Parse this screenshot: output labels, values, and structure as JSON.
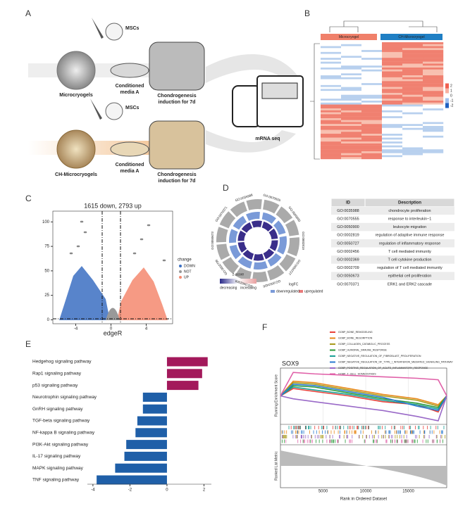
{
  "panel_letters": [
    "A",
    "B",
    "C",
    "D",
    "E",
    "F"
  ],
  "panel_a": {
    "msc_label_top": "MSCs",
    "msc_label_bottom": "MSCs",
    "scaffold_top": "Microcryogels",
    "scaffold_bottom": "CH-Microcryogels",
    "media_top": [
      "Conditioned",
      "media A"
    ],
    "media_bottom": [
      "Conditioned",
      "media A"
    ],
    "induction_top": [
      "Chondrogenesis",
      "induction for 7d"
    ],
    "induction_bottom": [
      "Chondrogenesis",
      "induction for 7d"
    ],
    "sequencing": "mRNA seq"
  },
  "panel_b": {
    "groups": [
      "Microcryogel",
      "CH-Microcryogel"
    ],
    "scale": [
      {
        "value": 2,
        "label": "2"
      },
      {
        "value": 1,
        "label": "1"
      },
      {
        "value": 0,
        "label": "0"
      },
      {
        "value": -1,
        "label": "-1"
      },
      {
        "value": -2,
        "label": "-2"
      }
    ]
  },
  "panel_d": {
    "axis_labels": {
      "zscore": "z-score",
      "decreasing": "decreasing",
      "increasing": "increasing",
      "logfc": "logFC",
      "down": "downregulated",
      "up": "upregulated"
    },
    "table": {
      "header": [
        "ID",
        "Description"
      ],
      "rows": [
        [
          "GO:0035988",
          "chondrocyte proliferation"
        ],
        [
          "GO:0070555",
          "response to interleukin−1"
        ],
        [
          "GO:0050900",
          "leukocyte migration"
        ],
        [
          "GO:0002819",
          "regulation of adaptive immune response"
        ],
        [
          "GO:0050727",
          "regulation of inflammatory response"
        ],
        [
          "GO:0002456",
          "T cell mediated immunity"
        ],
        [
          "GO:0002369",
          "T cell cytokine production"
        ],
        [
          "GO:0002709",
          "regulation of T cell mediated immunity"
        ],
        [
          "GO:0050673",
          "epithelial cell proliferation"
        ],
        [
          "GO:0070371",
          "ERK1 and ERK2 cascade"
        ]
      ],
      "highlight_color": "#e0312a"
    }
  },
  "chart_data": [
    {
      "type": "volcano",
      "title": "1615 down, 2793 up",
      "x_label": "edgeR",
      "xlim": [
        -6.6,
        7
      ],
      "ylim": [
        -4,
        111
      ],
      "xticks": [
        -4,
        0,
        4
      ],
      "yticks": [
        0,
        25,
        50,
        75,
        100
      ],
      "legend_title": "change",
      "legend": [
        {
          "name": "DOWN",
          "color": "#3b6fc2"
        },
        {
          "name": "NOT",
          "color": "#999999"
        },
        {
          "name": "UP",
          "color": "#f4886e"
        }
      ]
    },
    {
      "type": "hbar",
      "categories": [
        "Hedgehog signaling pathway",
        "Rap1 signaling pathway",
        "p53 signaling pathway",
        "Neurotrophin signaling pathway",
        "GnRH signaling pathway",
        "TGF-beta signaling pathway",
        "NF-kappa B signaling pathway",
        "PI3K-Akt signaling pathway",
        "IL-17 signaling pathway",
        "MAPK signaling pathway",
        "TNF signaling pathway"
      ],
      "values": [
        2.2,
        1.9,
        1.7,
        -1.3,
        -1.3,
        -1.6,
        -1.7,
        -2.2,
        -2.3,
        -2.8,
        -3.8
      ],
      "positive_color": "#a3195b",
      "negative_color": "#1f5fa8",
      "positive_label_color": "#e0312a",
      "negative_label_color": "#2a3f9a",
      "xlim": [
        -4.3,
        2.4
      ],
      "xticks": [
        -4,
        -2,
        0,
        2
      ]
    },
    {
      "type": "line",
      "title": "SOX9",
      "y_label": "Running Enrichment Score",
      "y2_label": "Ranked List Metric",
      "x_label": "Rank in Ordered Dataset",
      "x": [
        0,
        1500,
        4000,
        8000,
        12000,
        16000,
        18500,
        19500
      ],
      "xlim": [
        0,
        19500
      ],
      "xticks": [
        5000,
        10000,
        15000
      ],
      "ylim": [
        -0.9,
        0.9
      ],
      "series": [
        {
          "name": "GOBP_BONE_REMODELING",
          "color": "#e8413a",
          "values": [
            0,
            0.25,
            0.15,
            0,
            -0.2,
            -0.3,
            -0.55,
            0
          ]
        },
        {
          "name": "GOBP_BONE_RESORPTION",
          "color": "#e8891a",
          "values": [
            0,
            0.5,
            0.45,
            0.25,
            0.05,
            -0.1,
            -0.3,
            0
          ]
        },
        {
          "name": "GOBP_COLLAGEN_CATABOLIC_PROCESS",
          "color": "#a89a1c",
          "values": [
            0,
            0.45,
            0.4,
            0.2,
            0,
            -0.15,
            -0.35,
            0
          ]
        },
        {
          "name": "GOBP_HUMORAL_IMMUNE_RESPONSE",
          "color": "#2a9a3a",
          "values": [
            0,
            0.35,
            0.3,
            0.1,
            -0.1,
            -0.25,
            -0.4,
            0
          ]
        },
        {
          "name": "GOBP_NEGATIVE_REGULATION_OF_FIBROBLAST_PROLIFERATION",
          "color": "#1aa096",
          "values": [
            0,
            0.3,
            0.2,
            0.05,
            -0.15,
            -0.3,
            -0.45,
            0
          ]
        },
        {
          "name": "GOBP_NEGATIVE_REGULATION_OF_TYPE_I_INTERFERON_MEDIATED_SIGNALING_PATHWAY",
          "color": "#2a7ad0",
          "values": [
            0,
            0.4,
            0.35,
            0.15,
            -0.05,
            -0.35,
            -0.5,
            0
          ]
        },
        {
          "name": "GOBP_POSITIVE_REGULATION_OF_ACUTE_INFLAMMATORY_RESPONSE",
          "color": "#9a6ac8",
          "values": [
            0,
            -0.1,
            -0.2,
            -0.35,
            -0.5,
            -0.7,
            -0.85,
            0
          ]
        },
        {
          "name": "GOBP_T_CELL_HOMEOSTASIS",
          "color": "#e060a8",
          "values": [
            0,
            0.8,
            0.75,
            0.7,
            0.65,
            0.6,
            0.55,
            0
          ]
        }
      ]
    }
  ]
}
